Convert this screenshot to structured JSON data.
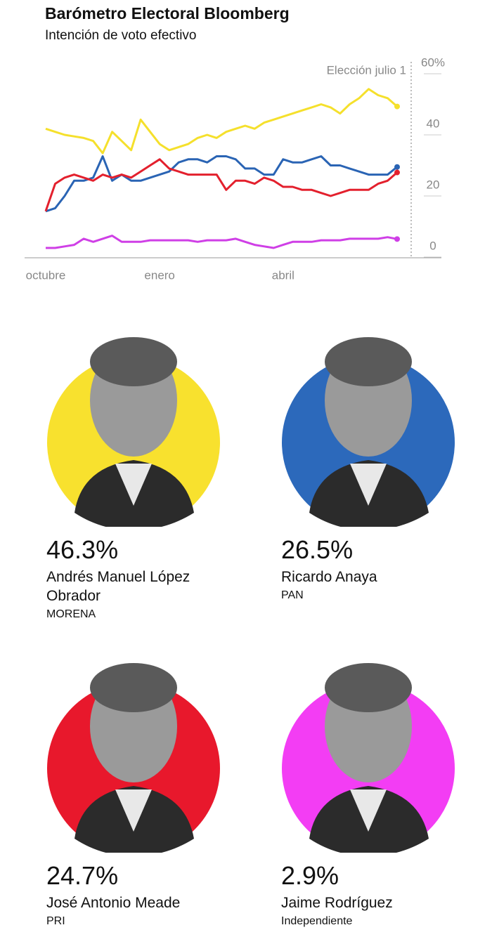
{
  "header": {
    "title": "Barómetro Electoral Bloomberg",
    "subtitle": "Intención de voto efectivo"
  },
  "chart_data": {
    "type": "line",
    "annotation": "Elección julio 1",
    "categories": [
      "octubre",
      null,
      null,
      null,
      null,
      null,
      null,
      null,
      null,
      null,
      null,
      null,
      "enero",
      null,
      null,
      null,
      null,
      null,
      null,
      null,
      null,
      null,
      null,
      null,
      null,
      "abril",
      null,
      null,
      null,
      null,
      null,
      null,
      null,
      null,
      null,
      null,
      null,
      null
    ],
    "ylim": [
      -3,
      60
    ],
    "yticks": [
      {
        "value": 60,
        "label": "60%"
      },
      40,
      20,
      0
    ],
    "series": [
      {
        "color": "#f5e02c",
        "values": [
          39,
          38,
          37,
          36.5,
          36,
          35,
          31,
          38,
          35,
          32,
          42,
          38,
          34,
          32,
          33,
          34,
          36,
          37,
          36,
          38,
          39,
          40,
          39,
          41,
          42,
          43,
          44,
          45,
          46,
          47,
          46,
          44,
          47,
          49,
          52,
          50,
          49,
          46.3
        ]
      },
      {
        "color": "#2a64b4",
        "values": [
          12,
          13,
          17,
          22,
          22,
          23,
          30,
          22,
          24,
          22,
          22,
          23,
          24,
          25,
          28,
          29,
          29,
          28,
          30,
          30,
          29,
          26,
          26,
          24,
          24,
          29,
          28,
          28,
          29,
          30,
          27,
          27,
          26,
          25,
          24,
          24,
          24,
          26.5
        ]
      },
      {
        "color": "#e3202d",
        "values": [
          12,
          21,
          23,
          24,
          23,
          22,
          24,
          23,
          24,
          23,
          25,
          27,
          29,
          26,
          25,
          24,
          24,
          24,
          24,
          19,
          22,
          22,
          21,
          23,
          22,
          20,
          20,
          19,
          19,
          18,
          17,
          18,
          19,
          19,
          19,
          21,
          22,
          24.7
        ]
      },
      {
        "color": "#cf3fe6",
        "values": [
          0,
          0,
          0.5,
          1,
          3,
          2,
          3,
          4,
          2,
          2,
          2,
          2.5,
          2.5,
          2.5,
          2.5,
          2.5,
          2,
          2.5,
          2.5,
          2.5,
          3,
          2,
          1,
          0.5,
          0,
          1,
          2,
          2,
          2,
          2.5,
          2.5,
          2.5,
          3,
          3,
          3,
          3,
          3.5,
          2.9
        ]
      }
    ]
  },
  "candidates": [
    {
      "percent": "46.3%",
      "name": "Andrés Manuel López Obrador",
      "party": "MORENA",
      "color": "#f8e12e"
    },
    {
      "percent": "26.5%",
      "name": "Ricardo Anaya",
      "party": "PAN",
      "color": "#2c69bb"
    },
    {
      "percent": "24.7%",
      "name": "José Antonio Meade",
      "party": "PRI",
      "color": "#e8182c"
    },
    {
      "percent": "2.9%",
      "name": "Jaime Rodríguez",
      "party": "Independiente",
      "color": "#f33df4"
    }
  ]
}
